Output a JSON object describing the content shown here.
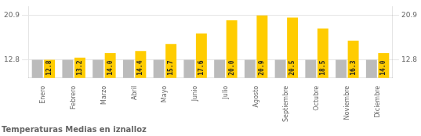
{
  "chart_data": {
    "type": "bar",
    "title": "Temperaturas Medias en iznalloz",
    "categories": [
      "Enero",
      "Febrero",
      "Marzo",
      "Abril",
      "Mayo",
      "Junio",
      "Julio",
      "Agosto",
      "Septiembre",
      "Octubre",
      "Noviembre",
      "Diciembre"
    ],
    "series": [
      {
        "color": "#BBBBBB",
        "values": [
          12.8,
          12.8,
          12.8,
          12.8,
          12.8,
          12.8,
          12.8,
          12.8,
          12.8,
          12.8,
          12.8,
          12.8
        ]
      },
      {
        "color": "#FFCC00",
        "values": [
          12.8,
          13.2,
          14.0,
          14.4,
          15.7,
          17.6,
          20.0,
          20.9,
          20.5,
          18.5,
          16.3,
          14.0
        ],
        "value_labels": [
          "12.8",
          "13.2",
          "14.0",
          "14.4",
          "15.7",
          "17.6",
          "20.0",
          "20.9",
          "20.5",
          "18.5",
          "16.3",
          "14.0"
        ]
      }
    ],
    "ylim": [
      9.5,
      22.5
    ],
    "yticks": [
      12.8,
      20.9
    ],
    "y2lim": [
      9.5,
      22.5
    ],
    "y2ticks": [
      12.8,
      20.9
    ],
    "grid": true,
    "data_labels": true
  }
}
